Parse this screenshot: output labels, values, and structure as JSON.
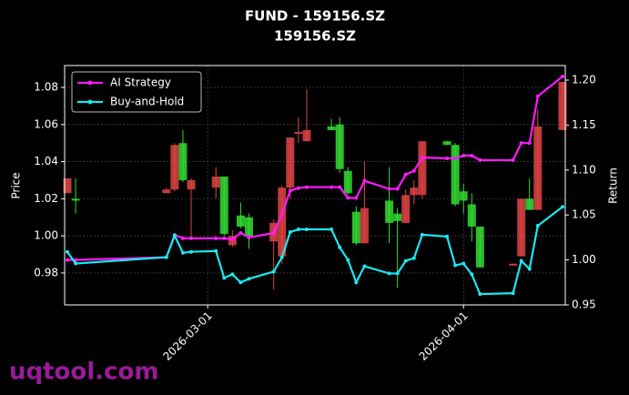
{
  "chart_data": {
    "type": "candlestick",
    "title": "FUND - 159156.SZ",
    "subtitle": "159156.SZ",
    "ylabel": "Price",
    "y2label": "Return",
    "x": [
      "2026-02-12",
      "2026-02-13",
      "2026-02-24",
      "2026-02-25",
      "2026-02-26",
      "2026-02-27",
      "2026-03-02",
      "2026-03-03",
      "2026-03-04",
      "2026-03-05",
      "2026-03-06",
      "2026-03-09",
      "2026-03-10",
      "2026-03-11",
      "2026-03-12",
      "2026-03-13",
      "2026-03-16",
      "2026-03-17",
      "2026-03-18",
      "2026-03-19",
      "2026-03-20",
      "2026-03-23",
      "2026-03-24",
      "2026-03-25",
      "2026-03-26",
      "2026-03-27",
      "2026-03-30",
      "2026-03-31",
      "2026-04-01",
      "2026-04-02",
      "2026-04-03",
      "2026-04-07",
      "2026-04-08",
      "2026-04-09",
      "2026-04-10",
      "2026-04-13"
    ],
    "open": [
      1.023,
      1.02,
      1.023,
      1.025,
      1.05,
      1.025,
      1.026,
      1.032,
      0.995,
      1.011,
      1.01,
      0.997,
      0.989,
      1.026,
      1.055,
      1.051,
      1.059,
      1.06,
      1.035,
      1.013,
      0.996,
      1.019,
      1.012,
      1.007,
      1.022,
      1.022,
      1.051,
      1.049,
      1.024,
      1.017,
      1.005,
      0.984,
      0.989,
      1.02,
      1.014,
      1.057
    ],
    "high": [
      1.031,
      1.031,
      1.026,
      1.05,
      1.057,
      1.031,
      1.037,
      1.032,
      1.003,
      1.018,
      1.012,
      1.009,
      1.027,
      1.053,
      1.064,
      1.079,
      1.063,
      1.064,
      1.037,
      1.016,
      1.04,
      1.037,
      1.015,
      1.025,
      1.03,
      1.051,
      1.051,
      1.05,
      1.028,
      1.023,
      1.005,
      0.985,
      1.02,
      1.031,
      1.068,
      1.083
    ],
    "low": [
      1.023,
      1.012,
      1.023,
      1.024,
      1.029,
      0.999,
      1.02,
      1.0,
      0.994,
      1.004,
      0.993,
      0.971,
      0.985,
      1.02,
      1.05,
      1.051,
      1.057,
      1.034,
      1.022,
      0.995,
      0.996,
      0.996,
      0.972,
      1.007,
      1.017,
      1.02,
      1.049,
      1.016,
      1.012,
      0.997,
      0.983,
      0.984,
      0.989,
      1.014,
      1.014,
      1.057
    ],
    "close": [
      1.031,
      1.019,
      1.025,
      1.049,
      1.03,
      1.03,
      1.032,
      1.001,
      1.0,
      1.005,
      1.0,
      1.007,
      1.026,
      1.053,
      1.056,
      1.057,
      1.057,
      1.036,
      1.023,
      0.996,
      1.015,
      1.007,
      1.008,
      1.022,
      1.026,
      1.051,
      1.049,
      1.017,
      1.019,
      1.005,
      0.983,
      0.985,
      1.02,
      1.014,
      1.059,
      1.083
    ],
    "up_color": "#e04444",
    "down_color": "#33dd33",
    "series": [
      {
        "name": "AI Strategy",
        "color": "#ff1aff",
        "axis": "y2",
        "values": [
          1.0,
          1.0,
          1.003,
          1.028,
          1.024,
          1.024,
          1.024,
          1.024,
          1.023,
          1.03,
          1.025,
          1.03,
          1.051,
          1.077,
          1.08,
          1.081,
          1.081,
          1.081,
          1.069,
          1.069,
          1.088,
          1.079,
          1.079,
          1.095,
          1.099,
          1.114,
          1.113,
          1.113,
          1.116,
          1.116,
          1.111,
          1.111,
          1.13,
          1.13,
          1.182,
          1.204
        ]
      },
      {
        "name": "Buy-and-Hold",
        "color": "#1ae8f0",
        "axis": "y2",
        "values": [
          1.009,
          0.996,
          1.003,
          1.027,
          1.008,
          1.009,
          1.01,
          0.98,
          0.984,
          0.975,
          0.979,
          0.987,
          1.003,
          1.031,
          1.034,
          1.034,
          1.034,
          1.014,
          1.0,
          0.975,
          0.993,
          0.985,
          0.985,
          0.999,
          1.002,
          1.028,
          1.026,
          0.994,
          0.996,
          0.984,
          0.962,
          0.963,
          0.999,
          0.99,
          1.038,
          1.059
        ]
      }
    ],
    "xlim": [
      "2026-02-12",
      "2026-04-13"
    ],
    "xticks": [
      "2026-03-01",
      "2026-04-01"
    ],
    "ylim": [
      0.9628,
      1.0918
    ],
    "yticks": [
      0.98,
      {
        "value": 1,
        "label": "1.00"
      },
      1.02,
      1.04,
      1.06,
      1.08
    ],
    "y2lim": [
      0.95,
      1.2162
    ],
    "y2ticks": [
      0.95,
      {
        "value": 1,
        "label": "1.00"
      },
      1.05,
      {
        "value": 1.1,
        "label": "1.10"
      },
      1.15,
      {
        "value": 1.2,
        "label": "1.20"
      }
    ],
    "grid": true,
    "legend": "upper left"
  },
  "watermark": "uqtool.com"
}
